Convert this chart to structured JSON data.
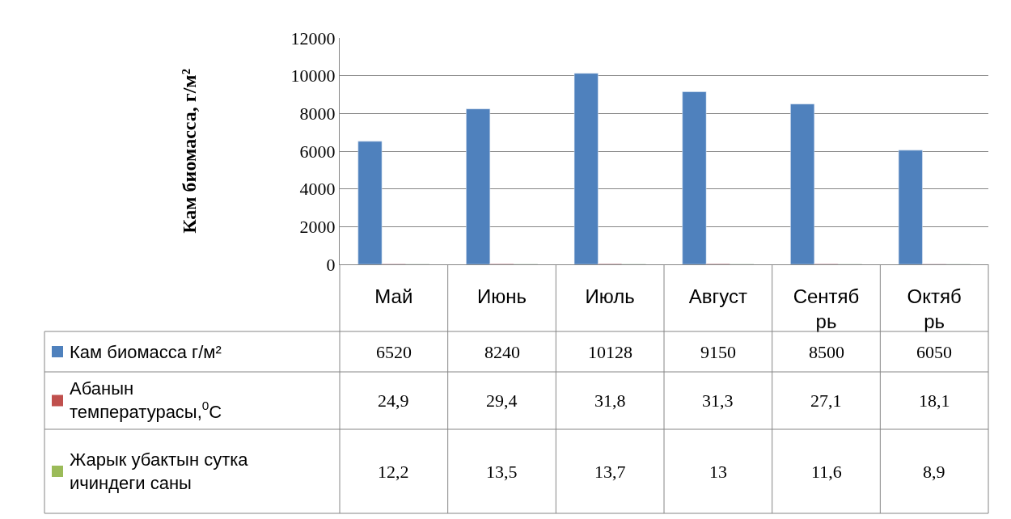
{
  "chart_data": {
    "type": "bar",
    "ylabel": "Кам биомасса, г/м²",
    "categories": [
      "Май",
      "Июнь",
      "Июль",
      "Август",
      "Сентябрь",
      "Октябрь"
    ],
    "series": [
      {
        "name": "Кам биомасса г/м²",
        "color": "#4f81bd",
        "values": [
          6520,
          8240,
          10128,
          9150,
          8500,
          6050
        ],
        "value_labels": [
          "6520",
          "8240",
          "10128",
          "9150",
          "8500",
          "6050"
        ]
      },
      {
        "name": "Абанын температурасы,$^{0}$С",
        "color": "#c0504d",
        "values": [
          24.9,
          29.4,
          31.8,
          31.3,
          27.1,
          18.1
        ],
        "value_labels": [
          "24,9",
          "29,4",
          "31,8",
          "31,3",
          "27,1",
          "18,1"
        ]
      },
      {
        "name": "Жарык убактын сутка ичиндеги саны",
        "color": "#9bbb59",
        "values": [
          12.2,
          13.5,
          13.7,
          13,
          11.6,
          8.9
        ],
        "value_labels": [
          "12,2",
          "13,5",
          "13,7",
          "13",
          "11,6",
          "8,9"
        ]
      }
    ],
    "ylim": [
      0,
      12000
    ],
    "yticks": [
      0,
      2000,
      4000,
      6000,
      8000,
      10000,
      12000
    ],
    "grid": "y",
    "legend": "bottom"
  }
}
